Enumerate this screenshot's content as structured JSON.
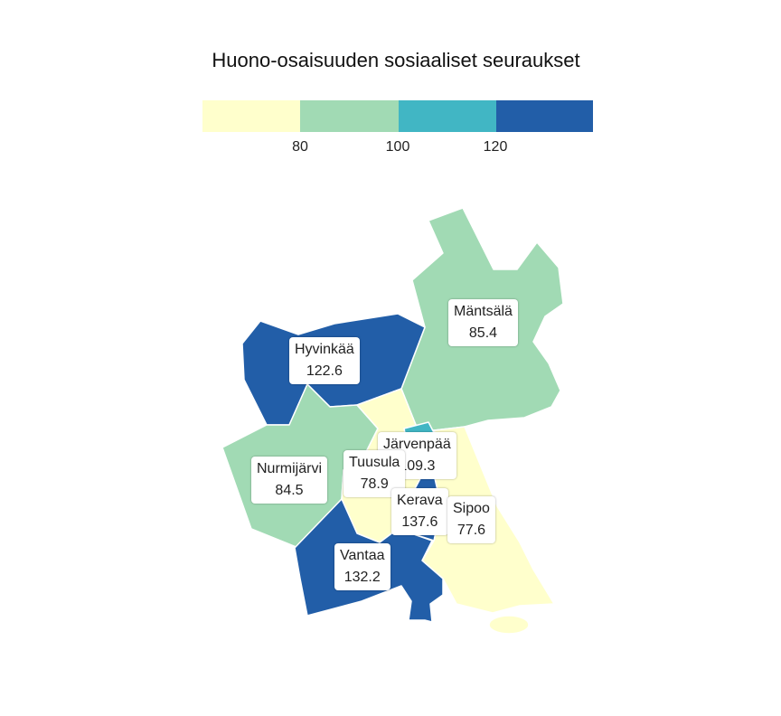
{
  "title": "Huono-osaisuuden sosiaaliset seuraukset",
  "legend": {
    "colors": [
      "#ffffcc",
      "#a1dab4",
      "#41b6c4",
      "#225ea8"
    ],
    "breaks": [
      "80",
      "100",
      "120"
    ]
  },
  "regions": [
    {
      "id": "mantsala",
      "name": "Mäntsälä",
      "value": "85.4",
      "color": "#a1dab4"
    },
    {
      "id": "hyvinkaa",
      "name": "Hyvinkää",
      "value": "122.6",
      "color": "#225ea8"
    },
    {
      "id": "nurmijarvi",
      "name": "Nurmijärvi",
      "value": "84.5",
      "color": "#a1dab4"
    },
    {
      "id": "tuusula",
      "name": "Tuusula",
      "value": "78.9",
      "color": "#ffffcc"
    },
    {
      "id": "jarvenpaa",
      "name": "Järvenpää",
      "value": "109.3",
      "color": "#41b6c4"
    },
    {
      "id": "kerava",
      "name": "Kerava",
      "value": "137.6",
      "color": "#225ea8"
    },
    {
      "id": "sipoo",
      "name": "Sipoo",
      "value": "77.6",
      "color": "#ffffcc"
    },
    {
      "id": "vantaa",
      "name": "Vantaa",
      "value": "132.2",
      "color": "#225ea8"
    }
  ]
}
